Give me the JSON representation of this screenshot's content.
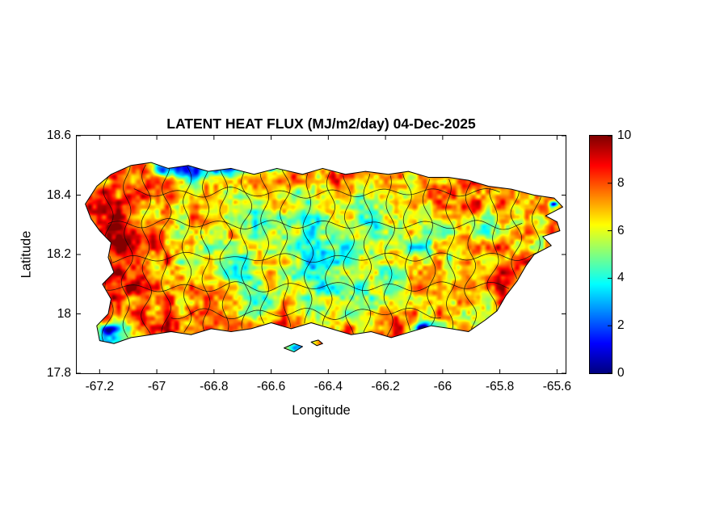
{
  "figure": {
    "background": "#ffffff"
  },
  "chart_data": {
    "type": "heatmap",
    "title": "LATENT HEAT FLUX (MJ/m2/day) 04-Dec-2025",
    "xlabel": "Longitude",
    "ylabel": "Latitude",
    "region": "Puerto Rico",
    "xlim": [
      -67.28,
      -65.57
    ],
    "ylim": [
      17.8,
      18.6
    ],
    "xticks": [
      -67.2,
      -67,
      -66.8,
      -66.6,
      -66.4,
      -66.2,
      -66,
      -65.8,
      -65.6
    ],
    "xtick_labels": [
      "-67.2",
      "-67",
      "-66.8",
      "-66.6",
      "-66.4",
      "-66.2",
      "-66",
      "-65.8",
      "-65.6"
    ],
    "yticks": [
      17.8,
      18,
      18.2,
      18.4,
      18.6
    ],
    "ytick_labels": [
      "17.8",
      "18",
      "18.2",
      "18.4",
      "18.6"
    ],
    "colorbar": {
      "min": 0,
      "max": 10,
      "ticks": [
        0,
        2,
        4,
        6,
        8,
        10
      ],
      "tick_labels": [
        "0",
        "2",
        "4",
        "6",
        "8",
        "10"
      ],
      "colormap": "jet"
    },
    "grid": {
      "lon": [
        -67.25,
        -67.15,
        -67.05,
        -66.95,
        -66.85,
        -66.75,
        -66.65,
        -66.55,
        -66.45,
        -66.35,
        -66.25,
        -66.15,
        -66.05,
        -65.95,
        -65.85,
        -65.75,
        -65.65
      ],
      "lat": [
        17.9,
        17.98,
        18.06,
        18.14,
        18.22,
        18.3,
        18.38,
        18.46,
        18.54
      ],
      "values": [
        [
          6,
          3,
          7,
          8,
          8,
          7,
          7,
          8,
          7,
          7,
          7,
          8,
          5,
          7,
          7,
          7,
          7
        ],
        [
          8,
          6,
          8,
          8,
          7,
          7,
          6,
          7,
          6,
          6,
          7,
          8,
          6,
          7,
          7,
          7,
          7
        ],
        [
          9,
          9,
          8,
          8,
          7,
          6,
          5,
          6,
          5,
          5,
          6,
          7,
          7,
          7,
          7,
          8,
          7
        ],
        [
          9,
          9,
          8,
          7,
          6,
          5,
          5,
          6,
          5,
          4,
          5,
          6,
          6,
          7,
          8,
          8,
          7
        ],
        [
          8,
          9,
          8,
          7,
          6,
          6,
          5,
          5,
          4,
          4,
          5,
          5,
          5,
          6,
          7,
          8,
          7
        ],
        [
          8,
          9,
          8,
          7,
          6,
          6,
          5,
          6,
          5,
          5,
          5,
          5,
          6,
          7,
          5,
          6,
          7
        ],
        [
          8,
          8,
          8,
          7,
          7,
          6,
          6,
          6,
          6,
          6,
          6,
          6,
          7,
          7,
          8,
          8,
          7
        ],
        [
          7,
          8,
          8,
          7,
          6,
          6,
          7,
          7,
          7,
          8,
          7,
          7,
          7,
          7,
          8,
          8,
          7
        ],
        [
          6,
          7,
          7,
          1,
          0.5,
          1,
          5,
          6,
          6,
          7,
          7,
          6,
          6,
          6,
          7,
          7,
          7
        ]
      ]
    },
    "low_spots": [
      {
        "lon": -66.88,
        "lat": 18.49,
        "r": 0.055,
        "v": 0.2
      },
      {
        "lon": -66.78,
        "lat": 18.495,
        "r": 0.05,
        "v": 0.5
      },
      {
        "lon": -66.97,
        "lat": 18.485,
        "r": 0.04,
        "v": 0.8
      },
      {
        "lon": -66.6,
        "lat": 18.49,
        "r": 0.018,
        "v": 1.5
      },
      {
        "lon": -66.36,
        "lat": 18.485,
        "r": 0.015,
        "v": 2
      },
      {
        "lon": -67.17,
        "lat": 17.945,
        "r": 0.03,
        "v": 0.3
      },
      {
        "lon": -66.07,
        "lat": 17.95,
        "r": 0.025,
        "v": 0.5
      },
      {
        "lon": -65.61,
        "lat": 18.37,
        "r": 0.015,
        "v": 1.5
      },
      {
        "lon": -66.5,
        "lat": 17.885,
        "r": 0.04,
        "v": 2.5
      }
    ],
    "coastline": [
      [
        -67.25,
        18.37
      ],
      [
        -67.21,
        18.43
      ],
      [
        -67.16,
        18.47
      ],
      [
        -67.09,
        18.5
      ],
      [
        -67.02,
        18.51
      ],
      [
        -66.96,
        18.49
      ],
      [
        -66.89,
        18.5
      ],
      [
        -66.82,
        18.48
      ],
      [
        -66.74,
        18.49
      ],
      [
        -66.66,
        18.47
      ],
      [
        -66.58,
        18.49
      ],
      [
        -66.49,
        18.47
      ],
      [
        -66.42,
        18.49
      ],
      [
        -66.34,
        18.47
      ],
      [
        -66.27,
        18.48
      ],
      [
        -66.19,
        18.47
      ],
      [
        -66.12,
        18.48
      ],
      [
        -66.05,
        18.46
      ],
      [
        -65.98,
        18.46
      ],
      [
        -65.91,
        18.45
      ],
      [
        -65.84,
        18.43
      ],
      [
        -65.76,
        18.42
      ],
      [
        -65.68,
        18.4
      ],
      [
        -65.61,
        18.39
      ],
      [
        -65.58,
        18.36
      ],
      [
        -65.64,
        18.33
      ],
      [
        -65.6,
        18.31
      ],
      [
        -65.59,
        18.28
      ],
      [
        -65.65,
        18.26
      ],
      [
        -65.62,
        18.23
      ],
      [
        -65.68,
        18.2
      ],
      [
        -65.71,
        18.16
      ],
      [
        -65.74,
        18.11
      ],
      [
        -65.78,
        18.06
      ],
      [
        -65.81,
        18.01
      ],
      [
        -65.85,
        17.98
      ],
      [
        -65.91,
        17.94
      ],
      [
        -65.97,
        17.95
      ],
      [
        -66.04,
        17.96
      ],
      [
        -66.11,
        17.94
      ],
      [
        -66.18,
        17.92
      ],
      [
        -66.25,
        17.94
      ],
      [
        -66.32,
        17.93
      ],
      [
        -66.39,
        17.95
      ],
      [
        -66.46,
        17.97
      ],
      [
        -66.53,
        17.95
      ],
      [
        -66.6,
        17.97
      ],
      [
        -66.67,
        17.95
      ],
      [
        -66.74,
        17.94
      ],
      [
        -66.81,
        17.95
      ],
      [
        -66.88,
        17.93
      ],
      [
        -66.95,
        17.94
      ],
      [
        -67.02,
        17.93
      ],
      [
        -67.09,
        17.92
      ],
      [
        -67.15,
        17.9
      ],
      [
        -67.2,
        17.91
      ],
      [
        -67.21,
        17.96
      ],
      [
        -67.17,
        18.0
      ],
      [
        -67.16,
        18.05
      ],
      [
        -67.19,
        18.1
      ],
      [
        -67.15,
        18.14
      ],
      [
        -67.17,
        18.19
      ],
      [
        -67.16,
        18.24
      ],
      [
        -67.2,
        18.28
      ],
      [
        -67.23,
        18.32
      ]
    ],
    "islets": [
      [
        [
          -66.555,
          17.885
        ],
        [
          -66.52,
          17.9
        ],
        [
          -66.49,
          17.89
        ],
        [
          -66.52,
          17.872
        ]
      ],
      [
        [
          -66.46,
          17.905
        ],
        [
          -66.435,
          17.912
        ],
        [
          -66.42,
          17.9
        ],
        [
          -66.44,
          17.893
        ]
      ]
    ],
    "boundaries": {
      "vertical_lons": [
        -67.17,
        -67.11,
        -67.04,
        -66.97,
        -66.9,
        -66.83,
        -66.76,
        -66.69,
        -66.62,
        -66.55,
        -66.47,
        -66.4,
        -66.33,
        -66.26,
        -66.19,
        -66.12,
        -66.05,
        -65.98,
        -65.9,
        -65.82,
        -65.74,
        -65.67
      ],
      "horizontal": [
        {
          "lat": 18.0,
          "lon0": -66.95,
          "lon1": -66.0
        },
        {
          "lat": 18.09,
          "lon0": -67.2,
          "lon1": -65.75
        },
        {
          "lat": 18.19,
          "lon0": -67.22,
          "lon1": -65.66
        },
        {
          "lat": 18.3,
          "lon0": -67.17,
          "lon1": -65.72
        },
        {
          "lat": 18.41,
          "lon0": -67.08,
          "lon1": -65.8
        }
      ]
    }
  }
}
